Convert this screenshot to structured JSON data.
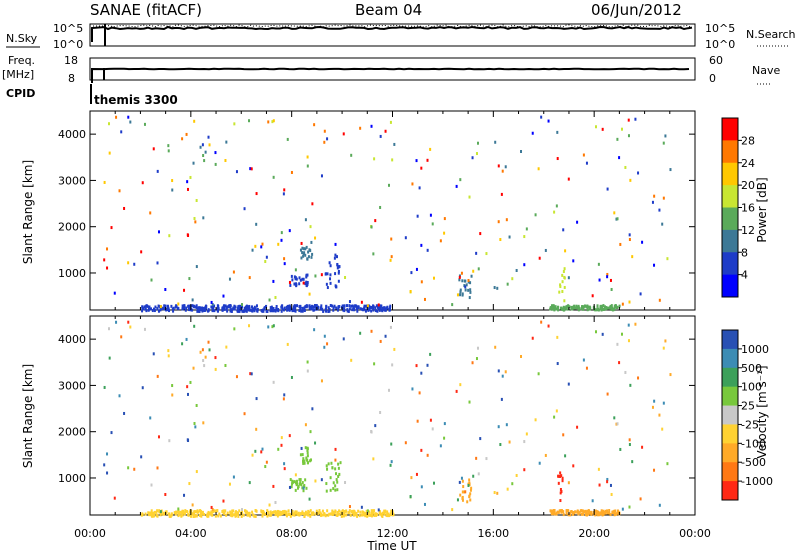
{
  "header": {
    "station": "SANAE (fitACF)",
    "beam": "Beam 04",
    "date": "06/Jun/2012"
  },
  "summary_panels": {
    "nsky": {
      "label": "N.Sky",
      "tick_top": "10^5",
      "tick_bottom": "10^0"
    },
    "nsearch": {
      "label": "N.Search",
      "tick_top": "10^5",
      "tick_bottom": "10^0"
    },
    "freq": {
      "label_top": "Freq.",
      "label_bottom": "[MHz]",
      "tick_top": "18",
      "tick_bottom": "8"
    },
    "nave": {
      "label": "Nave",
      "tick_top": "60",
      "tick_bottom": "0"
    },
    "cpid": {
      "label": "CPID",
      "value": "themis 3300"
    }
  },
  "chart_data": [
    {
      "type": "heatmap",
      "name": "power",
      "ylabel": "Slant Range [km]",
      "ylim": [
        200,
        4500
      ],
      "xlim": [
        0,
        24
      ],
      "yticks": [
        1000,
        2000,
        3000,
        4000
      ],
      "colorbar": {
        "label": "Power [dB]",
        "ticks": [
          "28",
          "24",
          "20",
          "16",
          "12",
          "8",
          "4"
        ],
        "colors": [
          "#ff0000",
          "#ff7800",
          "#ffc800",
          "#c8e632",
          "#5aaa5a",
          "#3c7896",
          "#1e3cc8",
          "#0000ff"
        ]
      },
      "clusters": [
        {
          "t0": 7.9,
          "t1": 8.6,
          "r0": 750,
          "r1": 1000,
          "color": "#1e3cc8"
        },
        {
          "t0": 8.3,
          "t1": 8.8,
          "r0": 1300,
          "r1": 1700,
          "color": "#3c7896"
        },
        {
          "t0": 9.3,
          "t1": 9.9,
          "r0": 700,
          "r1": 1400,
          "color": "#1e3cc8"
        },
        {
          "t0": 14.6,
          "t1": 15.1,
          "r0": 500,
          "r1": 1000,
          "color": "#3c7896"
        },
        {
          "t0": 18.2,
          "t1": 21.0,
          "r0": 230,
          "r1": 330,
          "color": "#5aaa5a"
        },
        {
          "t0": 18.5,
          "t1": 18.8,
          "r0": 400,
          "r1": 1300,
          "color": "#c8e632"
        },
        {
          "t0": 2.0,
          "t1": 12.0,
          "r0": 200,
          "r1": 330,
          "color": "#1e3cc8"
        }
      ]
    },
    {
      "type": "heatmap",
      "name": "velocity",
      "ylabel": "Slant Range [km]",
      "xlabel": "Time UT",
      "ylim": [
        200,
        4500
      ],
      "xlim": [
        0,
        24
      ],
      "yticks": [
        1000,
        2000,
        3000,
        4000
      ],
      "xticks": [
        "00:00",
        "04:00",
        "08:00",
        "12:00",
        "16:00",
        "20:00",
        "00:00"
      ],
      "colorbar": {
        "label": "Velocity [m s⁻¹]",
        "ticks": [
          "1000",
          "500",
          "100",
          "25",
          "-25",
          "-100",
          "-500",
          "-1000"
        ],
        "colors": [
          "#2850b4",
          "#3c8cb4",
          "#3ca05a",
          "#78c83c",
          "#c8c8c8",
          "#ffd232",
          "#ffaa28",
          "#ff7814",
          "#ff2814"
        ]
      },
      "clusters": [
        {
          "t0": 7.9,
          "t1": 8.6,
          "r0": 750,
          "r1": 1000,
          "color": "#78c83c"
        },
        {
          "t0": 8.3,
          "t1": 8.8,
          "r0": 1300,
          "r1": 1700,
          "color": "#78c83c"
        },
        {
          "t0": 9.3,
          "t1": 9.9,
          "r0": 700,
          "r1": 1400,
          "color": "#78c83c"
        },
        {
          "t0": 14.6,
          "t1": 15.1,
          "r0": 500,
          "r1": 1000,
          "color": "#ffaa28"
        },
        {
          "t0": 18.2,
          "t1": 21.0,
          "r0": 230,
          "r1": 330,
          "color": "#ffaa28"
        },
        {
          "t0": 18.5,
          "t1": 18.8,
          "r0": 400,
          "r1": 1300,
          "color": "#ff2814"
        },
        {
          "t0": 2.0,
          "t1": 12.0,
          "r0": 200,
          "r1": 330,
          "color": "#ffd232"
        }
      ]
    }
  ]
}
